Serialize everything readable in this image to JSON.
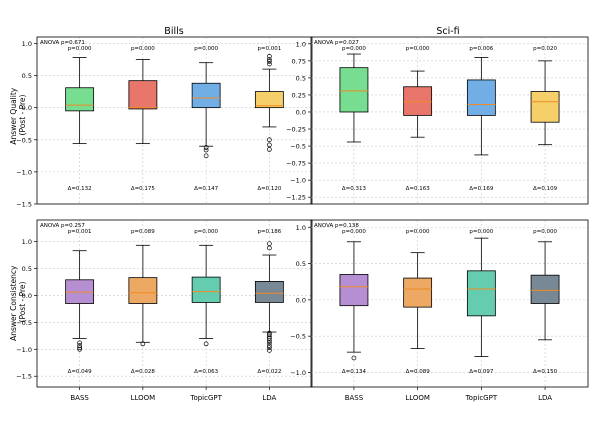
{
  "figure": {
    "column_titles": [
      "Bills",
      "Sci-fi"
    ],
    "row_ylabels": [
      [
        "Answer Quality",
        "(Post - Pre)"
      ],
      [
        "Answer Consistency",
        "(Post - Pre)"
      ]
    ]
  },
  "chart_data": [
    {
      "type": "box",
      "title": "Bills",
      "ylabel": "Answer Quality (Post - Pre)",
      "categories": [
        "BASS",
        "LLOOM",
        "TopicGPT",
        "LDA"
      ],
      "ylim": [
        -1.5,
        1.1
      ],
      "yticks": [
        -1.5,
        -1.0,
        -0.5,
        0.0,
        0.5,
        1.0
      ],
      "grid": true,
      "anova": "ANOVA p=0.671",
      "pvalues": [
        "p=0.000",
        "p=0.000",
        "p=0.000",
        "p=0.001"
      ],
      "deltas": [
        "Δ=0.132",
        "Δ=0.175",
        "Δ=0.147",
        "Δ=0.120"
      ],
      "colors": [
        "#77dd91",
        "#e8766a",
        "#72aee6",
        "#f5d06a"
      ],
      "boxes": [
        {
          "whisker_low": -0.56,
          "q1": -0.05,
          "median": 0.04,
          "q3": 0.31,
          "whisker_high": 0.78,
          "outliers": []
        },
        {
          "whisker_low": -0.56,
          "q1": -0.02,
          "median": 0.0,
          "q3": 0.42,
          "whisker_high": 0.75,
          "outliers": []
        },
        {
          "whisker_low": -0.6,
          "q1": 0.0,
          "median": 0.15,
          "q3": 0.38,
          "whisker_high": 0.7,
          "outliers": [
            -0.62,
            -0.66,
            -0.75
          ]
        },
        {
          "whisker_low": -0.3,
          "q1": 0.0,
          "median": 0.03,
          "q3": 0.25,
          "whisker_high": 0.6,
          "outliers": [
            0.68,
            0.72,
            0.75,
            0.8,
            -0.5,
            -0.58,
            -0.65
          ]
        }
      ]
    },
    {
      "type": "box",
      "title": "Sci-fi",
      "ylabel": "",
      "categories": [
        "BASS",
        "LLOOM",
        "TopicGPT",
        "LDA"
      ],
      "ylim": [
        -1.35,
        1.1
      ],
      "yticks": [
        -1.25,
        -1.0,
        -0.75,
        -0.5,
        -0.25,
        0.0,
        0.25,
        0.5,
        0.75,
        1.0
      ],
      "grid": true,
      "anova": "ANOVA p=0.027",
      "pvalues": [
        "p=0.000",
        "p=0.000",
        "p=0.006",
        "p=0.020"
      ],
      "deltas": [
        "Δ=0.313",
        "Δ=0.163",
        "Δ=0.169",
        "Δ=0.109"
      ],
      "colors": [
        "#77dd91",
        "#e8766a",
        "#72aee6",
        "#f5d06a"
      ],
      "boxes": [
        {
          "whisker_low": -0.44,
          "q1": 0.0,
          "median": 0.31,
          "q3": 0.65,
          "whisker_high": 0.85,
          "outliers": []
        },
        {
          "whisker_low": -0.37,
          "q1": -0.05,
          "median": 0.15,
          "q3": 0.37,
          "whisker_high": 0.6,
          "outliers": []
        },
        {
          "whisker_low": -0.63,
          "q1": -0.05,
          "median": 0.11,
          "q3": 0.47,
          "whisker_high": 0.8,
          "outliers": []
        },
        {
          "whisker_low": -0.48,
          "q1": -0.15,
          "median": 0.15,
          "q3": 0.3,
          "whisker_high": 0.75,
          "outliers": []
        }
      ]
    },
    {
      "type": "box",
      "title": "",
      "ylabel": "Answer Consistency (Post - Pre)",
      "categories": [
        "BASS",
        "LLOOM",
        "TopicGPT",
        "LDA"
      ],
      "ylim": [
        -1.7,
        1.4
      ],
      "yticks": [
        -1.5,
        -1.0,
        -0.5,
        0.0,
        0.5,
        1.0
      ],
      "grid": true,
      "anova": "ANOVA p=0.257",
      "pvalues": [
        "p=0.001",
        "p=0.089",
        "p=0.000",
        "p=0.186"
      ],
      "deltas": [
        "Δ=0.049",
        "Δ=0.028",
        "Δ=0.063",
        "Δ=0.022"
      ],
      "colors": [
        "#b68fd3",
        "#eda964",
        "#66ccb0",
        "#788894"
      ],
      "boxes": [
        {
          "whisker_low": -0.8,
          "q1": -0.15,
          "median": 0.06,
          "q3": 0.29,
          "whisker_high": 0.83,
          "outliers": [
            -0.88,
            -0.93,
            -0.97,
            -1.0
          ]
        },
        {
          "whisker_low": -0.87,
          "q1": -0.15,
          "median": 0.05,
          "q3": 0.33,
          "whisker_high": 0.93,
          "outliers": [
            -0.9
          ]
        },
        {
          "whisker_low": -0.8,
          "q1": -0.13,
          "median": 0.07,
          "q3": 0.34,
          "whisker_high": 0.93,
          "outliers": [
            -0.9
          ]
        },
        {
          "whisker_low": -0.68,
          "q1": -0.13,
          "median": 0.04,
          "q3": 0.26,
          "whisker_high": 0.75,
          "outliers": [
            0.88,
            0.96,
            -0.7,
            -0.73,
            -0.77,
            -0.8,
            -0.84,
            -0.88,
            -0.93,
            -0.97,
            -1.02
          ]
        }
      ]
    },
    {
      "type": "box",
      "title": "",
      "ylabel": "",
      "categories": [
        "BASS",
        "LLOOM",
        "TopicGPT",
        "LDA"
      ],
      "ylim": [
        -1.2,
        1.1
      ],
      "yticks": [
        -1.0,
        -0.5,
        0.0,
        0.5,
        1.0
      ],
      "grid": true,
      "anova": "ANOVA p=0.138",
      "pvalues": [
        "p=0.000",
        "p=0.000",
        "p=0.000",
        "p=0.000"
      ],
      "deltas": [
        "Δ=0.134",
        "Δ=0.089",
        "Δ=0.097",
        "Δ=0.150"
      ],
      "colors": [
        "#b68fd3",
        "#eda964",
        "#66ccb0",
        "#788894"
      ],
      "boxes": [
        {
          "whisker_low": -0.72,
          "q1": -0.08,
          "median": 0.18,
          "q3": 0.35,
          "whisker_high": 0.8,
          "outliers": [
            -0.8
          ]
        },
        {
          "whisker_low": -0.67,
          "q1": -0.1,
          "median": 0.15,
          "q3": 0.3,
          "whisker_high": 0.65,
          "outliers": []
        },
        {
          "whisker_low": -0.78,
          "q1": -0.22,
          "median": 0.15,
          "q3": 0.4,
          "whisker_high": 0.85,
          "outliers": []
        },
        {
          "whisker_low": -0.55,
          "q1": -0.05,
          "median": 0.13,
          "q3": 0.34,
          "whisker_high": 0.8,
          "outliers": []
        }
      ]
    }
  ]
}
